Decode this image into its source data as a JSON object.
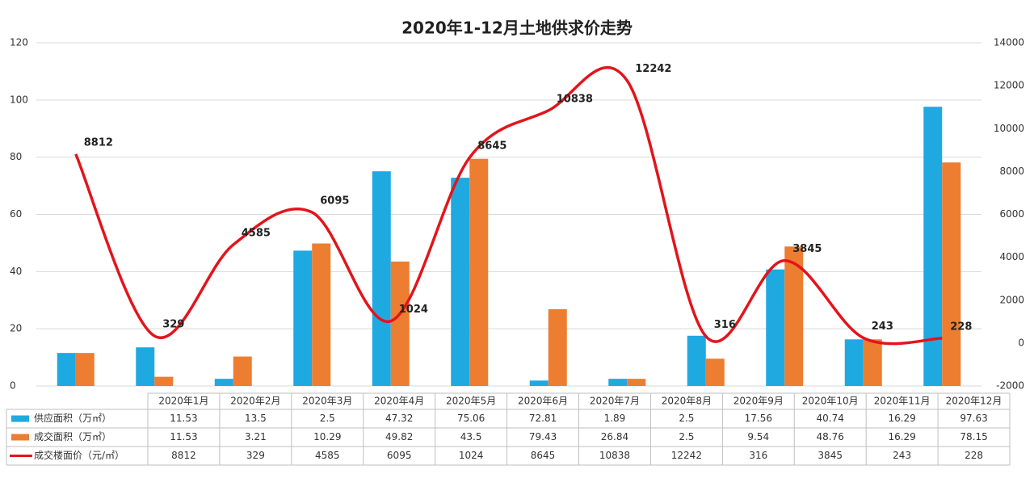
{
  "chart_data": {
    "type": "bar_line_table",
    "title": "2020年1-12月土地供求价走势",
    "categories": [
      "2020年1月",
      "2020年2月",
      "2020年3月",
      "2020年4月",
      "2020年5月",
      "2020年6月",
      "2020年7月",
      "2020年8月",
      "2020年9月",
      "2020年10月",
      "2020年11月",
      "2020年12月"
    ],
    "series": [
      {
        "name": "供应面积（万㎡）",
        "type": "bar",
        "color": "#1fa9e1",
        "values": [
          11.53,
          13.5,
          2.5,
          47.32,
          75.06,
          72.81,
          1.89,
          2.5,
          17.56,
          40.74,
          16.29,
          97.63
        ]
      },
      {
        "name": "成交面积（万㎡）",
        "type": "bar",
        "color": "#ed7d31",
        "values": [
          11.53,
          3.21,
          10.29,
          49.82,
          43.5,
          79.43,
          26.84,
          2.5,
          9.54,
          48.76,
          16.29,
          78.15
        ]
      },
      {
        "name": "成交楼面价（元/㎡）",
        "type": "line",
        "axis": "y2",
        "color": "#e3141b",
        "values": [
          8812,
          329,
          4585,
          6095,
          1024,
          8645,
          10838,
          12242,
          316,
          3845,
          243,
          228
        ]
      }
    ],
    "ylim": [
      0,
      120
    ],
    "yticks": [
      0,
      20,
      40,
      60,
      80,
      100,
      120
    ],
    "y2lim": [
      -2000,
      14000
    ],
    "y2ticks": [
      -2000,
      0,
      2000,
      4000,
      6000,
      8000,
      10000,
      12000,
      14000
    ],
    "grid": true
  }
}
